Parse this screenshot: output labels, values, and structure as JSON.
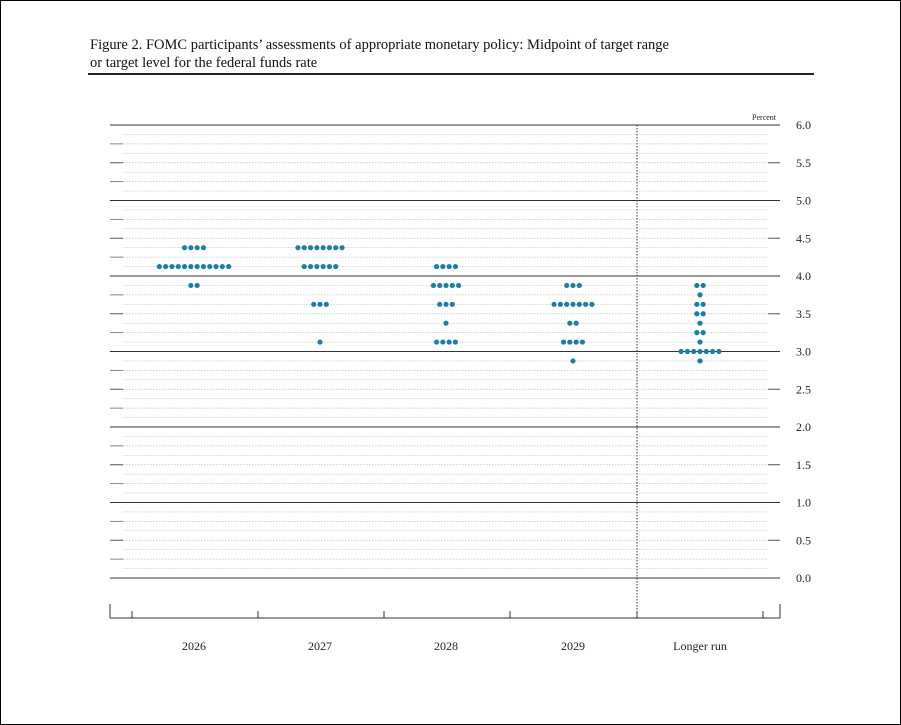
{
  "figure": {
    "title_line1": "Figure 2. FOMC participants’ assessments of appropriate monetary policy: Midpoint of target range",
    "title_line2": "or target level for the federal funds rate"
  },
  "chart_data": {
    "type": "scatter",
    "title": "Figure 2. FOMC participants’ assessments of appropriate monetary policy: Midpoint of target range or target level for the federal funds rate",
    "ylabel": "Percent",
    "ylim": [
      0,
      6.0
    ],
    "yticks": [
      "6.0",
      "5.5",
      "5.0",
      "4.5",
      "4.0",
      "3.5",
      "3.0",
      "2.5",
      "2.0",
      "1.5",
      "1.0",
      "0.5",
      "0.0"
    ],
    "categories": [
      "2026",
      "2027",
      "2028",
      "2029",
      "Longer run"
    ],
    "dot_color": "#1a7ea6",
    "groups": [
      {
        "x": "2026",
        "dots": [
          {
            "y": 4.375,
            "count": 4
          },
          {
            "y": 4.125,
            "count": 12
          },
          {
            "y": 3.875,
            "count": 2
          }
        ]
      },
      {
        "x": "2027",
        "dots": [
          {
            "y": 4.375,
            "count": 8
          },
          {
            "y": 4.125,
            "count": 6
          },
          {
            "y": 3.625,
            "count": 3
          },
          {
            "y": 3.125,
            "count": 1
          }
        ]
      },
      {
        "x": "2028",
        "dots": [
          {
            "y": 4.125,
            "count": 4
          },
          {
            "y": 3.875,
            "count": 5
          },
          {
            "y": 3.625,
            "count": 3
          },
          {
            "y": 3.375,
            "count": 1
          },
          {
            "y": 3.125,
            "count": 4
          }
        ]
      },
      {
        "x": "2029",
        "dots": [
          {
            "y": 3.875,
            "count": 3
          },
          {
            "y": 3.625,
            "count": 7
          },
          {
            "y": 3.375,
            "count": 2
          },
          {
            "y": 3.125,
            "count": 4
          },
          {
            "y": 2.875,
            "count": 1
          }
        ]
      },
      {
        "x": "Longer run",
        "dots": [
          {
            "y": 3.875,
            "count": 2
          },
          {
            "y": 3.75,
            "count": 1
          },
          {
            "y": 3.625,
            "count": 2
          },
          {
            "y": 3.5,
            "count": 2
          },
          {
            "y": 3.375,
            "count": 1
          },
          {
            "y": 3.25,
            "count": 2
          },
          {
            "y": 3.125,
            "count": 1
          },
          {
            "y": 3.0,
            "count": 7
          },
          {
            "y": 2.875,
            "count": 1
          }
        ]
      }
    ],
    "grid": true,
    "separator_before": "Longer run"
  }
}
